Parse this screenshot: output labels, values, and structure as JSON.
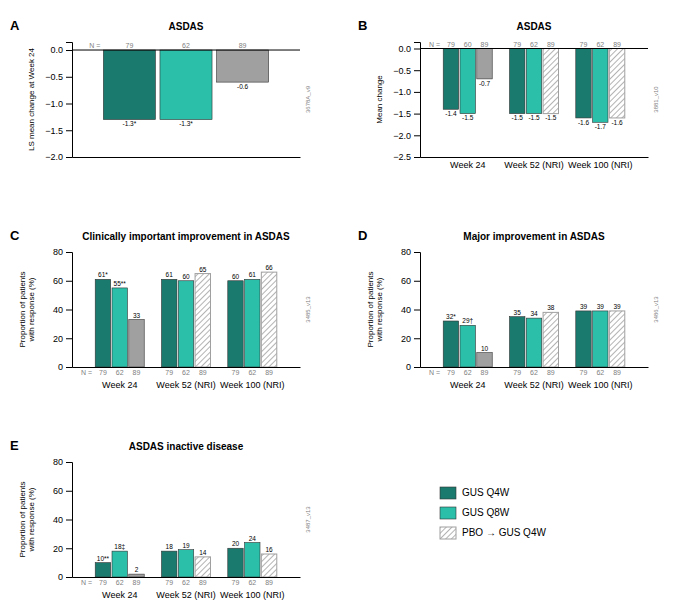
{
  "chart_data": [
    {
      "type": "bar",
      "panel_label": "A",
      "title": "ASDAS",
      "y_label": "LS mean change at Week 24",
      "side_label": "3678A_v9",
      "n_label": "N =",
      "categories": [
        null
      ],
      "series": [
        {
          "name": "GUS Q4W",
          "color": "#1a7a6e",
          "values": [
            -1.3
          ],
          "value_labels": [
            "-1.3*"
          ],
          "n": [
            79
          ]
        },
        {
          "name": "GUS Q8W",
          "color": "#2bbfaa",
          "values": [
            -1.3
          ],
          "value_labels": [
            "-1.3*"
          ],
          "n": [
            62
          ]
        },
        {
          "name": "PBO → GUS Q4W",
          "color": "#a0a0a0",
          "values": [
            -0.6
          ],
          "value_labels": [
            "-0.6"
          ],
          "n": [
            89
          ]
        }
      ],
      "ylim": [
        -2.0,
        0.15
      ],
      "yticks": [
        {
          "value": 0,
          "label": "0.0"
        },
        {
          "value": -0.5,
          "label": "−0.5"
        },
        {
          "value": -1.0,
          "label": "−1.0"
        },
        {
          "value": -1.5,
          "label": "−1.5"
        },
        {
          "value": -2.0,
          "label": "−2.0"
        }
      ],
      "data_labels": true,
      "grid": false
    },
    {
      "type": "bar",
      "panel_label": "B",
      "title": "ASDAS",
      "y_label": "Mean change",
      "side_label": "3881_v10",
      "n_label": "N =",
      "categories": [
        "Week 24",
        "Week 52 (NRI)",
        "Week 100 (NRI)"
      ],
      "series": [
        {
          "name": "GUS Q4W",
          "color": "#1a7a6e",
          "values": [
            -1.4,
            -1.5,
            -1.6
          ],
          "n": [
            79,
            79,
            79
          ]
        },
        {
          "name": "GUS Q8W",
          "color": "#2bbfaa",
          "values": [
            -1.5,
            -1.5,
            -1.7
          ],
          "n": [
            60,
            62,
            62
          ]
        },
        {
          "name": "PBO → GUS Q4W",
          "color": "#a0a0a0",
          "values": [
            -0.7,
            -1.5,
            -1.6
          ],
          "n": [
            89,
            89,
            89
          ]
        }
      ],
      "ylim": [
        -2.5,
        0.15
      ],
      "yticks": [
        {
          "value": 0,
          "label": "0.0"
        },
        {
          "value": -0.5,
          "label": "−0.5"
        },
        {
          "value": -1.0,
          "label": "−1.0"
        },
        {
          "value": -1.5,
          "label": "−1.5"
        },
        {
          "value": -2.0,
          "label": "−2.0"
        },
        {
          "value": -2.5,
          "label": "−2.5"
        }
      ],
      "data_labels": true,
      "grid": false
    },
    {
      "type": "bar",
      "panel_label": "C",
      "title": "Clinically important improvement in ASDAS",
      "y_label": "Proportion of patients\nwith response (%)",
      "side_label": "3485_v13",
      "n_label": "N =",
      "categories": [
        "Week 24",
        "Week 52 (NRI)",
        "Week 100 (NRI)"
      ],
      "series": [
        {
          "name": "GUS Q4W",
          "color": "#1a7a6e",
          "values": [
            61,
            61,
            60
          ],
          "value_labels": [
            "61*",
            "61",
            "60"
          ],
          "n": [
            79,
            79,
            79
          ]
        },
        {
          "name": "GUS Q8W",
          "color": "#2bbfaa",
          "values": [
            55,
            60,
            61
          ],
          "value_labels": [
            "55**",
            "60",
            "61"
          ],
          "n": [
            62,
            62,
            62
          ]
        },
        {
          "name": "PBO → GUS Q4W",
          "color": "#a0a0a0",
          "values": [
            33,
            65,
            66
          ],
          "value_labels": [
            "33",
            "65",
            "66"
          ],
          "n": [
            89,
            89,
            89
          ]
        }
      ],
      "ylim": [
        0,
        80
      ],
      "yticks": [
        0,
        20,
        40,
        60,
        80
      ],
      "data_labels": true,
      "grid": false
    },
    {
      "type": "bar",
      "panel_label": "D",
      "title": "Major improvement in ASDAS",
      "y_label": "Proportion of patients\nwith response (%)",
      "side_label": "3486_v13",
      "n_label": "N =",
      "categories": [
        "Week 24",
        "Week 52 (NRI)",
        "Week 100 (NRI)"
      ],
      "series": [
        {
          "name": "GUS Q4W",
          "color": "#1a7a6e",
          "values": [
            32,
            35,
            39
          ],
          "value_labels": [
            "32*",
            "35",
            "39"
          ],
          "n": [
            79,
            79,
            79
          ]
        },
        {
          "name": "GUS Q8W",
          "color": "#2bbfaa",
          "values": [
            29,
            34,
            39
          ],
          "value_labels": [
            "29†",
            "34",
            "39"
          ],
          "n": [
            62,
            62,
            62
          ]
        },
        {
          "name": "PBO → GUS Q4W",
          "color": "#a0a0a0",
          "values": [
            10,
            38,
            39
          ],
          "value_labels": [
            "10",
            "38",
            "39"
          ],
          "n": [
            89,
            89,
            89
          ]
        }
      ],
      "ylim": [
        0,
        80
      ],
      "yticks": [
        0,
        20,
        40,
        60,
        80
      ],
      "data_labels": true,
      "grid": false
    },
    {
      "type": "bar",
      "panel_label": "E",
      "title": "ASDAS inactive disease",
      "y_label": "Proportion of patients\nwith response (%)",
      "side_label": "3487_v13",
      "n_label": "N =",
      "categories": [
        "Week 24",
        "Week 52 (NRI)",
        "Week 100 (NRI)"
      ],
      "series": [
        {
          "name": "GUS Q4W",
          "color": "#1a7a6e",
          "values": [
            10,
            18,
            20
          ],
          "value_labels": [
            "10**",
            "18",
            "20"
          ],
          "n": [
            79,
            79,
            79
          ]
        },
        {
          "name": "GUS Q8W",
          "color": "#2bbfaa",
          "values": [
            18,
            19,
            24
          ],
          "value_labels": [
            "18‡",
            "19",
            "24"
          ],
          "n": [
            62,
            62,
            62
          ]
        },
        {
          "name": "PBO → GUS Q4W",
          "color": "#a0a0a0",
          "values": [
            2,
            14,
            16
          ],
          "value_labels": [
            "2",
            "14",
            "16"
          ],
          "n": [
            89,
            89,
            89
          ]
        }
      ],
      "ylim": [
        0,
        80
      ],
      "yticks": [
        0,
        20,
        40,
        60,
        80
      ],
      "data_labels": true,
      "grid": false,
      "legend": "lower right"
    }
  ]
}
